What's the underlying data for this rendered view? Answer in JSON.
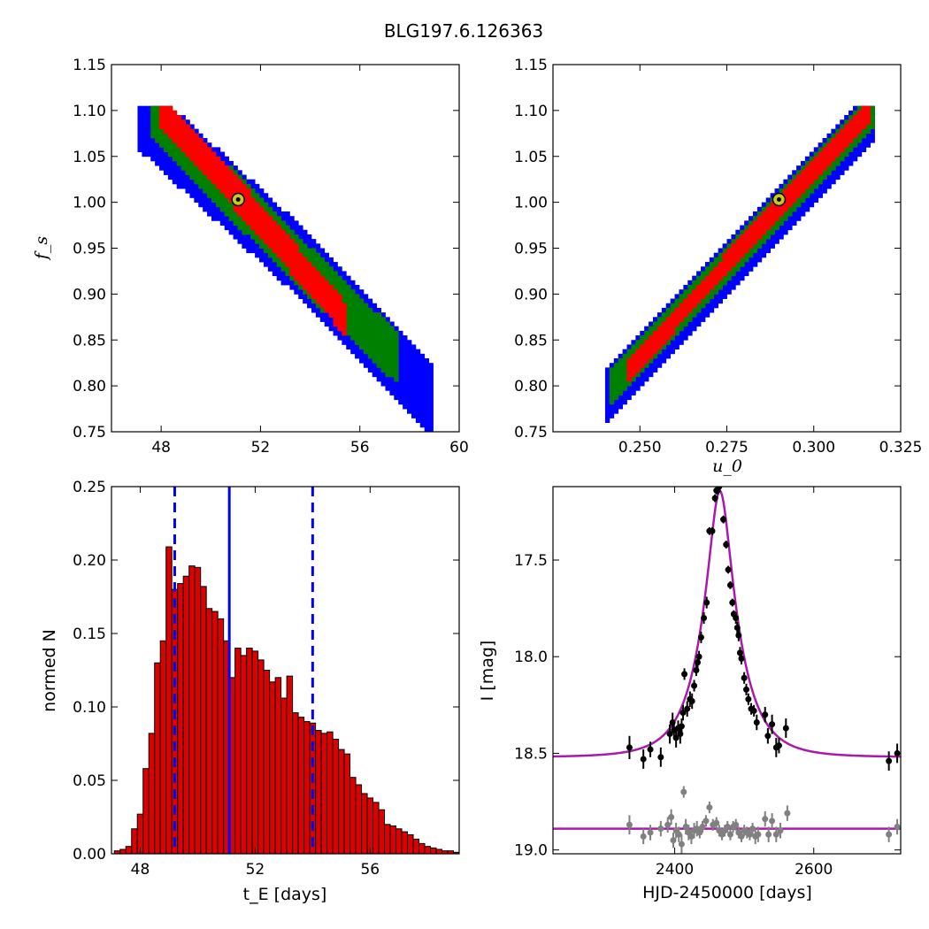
{
  "title": "BLG197.6.126363",
  "colors": {
    "red": "#ff0000",
    "green": "#008000",
    "blue": "#0000ff",
    "magenta": "#aa1aaa",
    "gray": "#808080",
    "best_fit_marker": "#c8c81e",
    "bar_fill": "#dd0000"
  },
  "chart_data": [
    {
      "id": "fs_vs_tE",
      "type": "heatmap",
      "xlabel": "",
      "ylabel": "f_s",
      "xlim": [
        46,
        60
      ],
      "ylim": [
        0.75,
        1.15
      ],
      "xticks": [
        48,
        52,
        56,
        60
      ],
      "xtick_labels": [
        "48",
        "52",
        "56",
        "60"
      ],
      "yticks": [
        0.75,
        0.8,
        0.85,
        0.9,
        0.95,
        1.0,
        1.05,
        1.1,
        1.15
      ],
      "ytick_labels": [
        "0.75",
        "0.80",
        "0.85",
        "0.90",
        "0.95",
        "1.00",
        "1.05",
        "1.10",
        "1.15"
      ],
      "confidence_bands": [
        {
          "color": "blue",
          "centerline": [
            [
              47.0,
              1.1
            ],
            [
              53.0,
              0.95
            ],
            [
              59.0,
              0.78
            ]
          ],
          "half_width": 0.04
        },
        {
          "color": "green",
          "centerline": [
            [
              47.5,
              1.1
            ],
            [
              53.0,
              0.95
            ],
            [
              57.5,
              0.83
            ]
          ],
          "half_width": 0.028
        },
        {
          "color": "red",
          "centerline": [
            [
              48.0,
              1.1
            ],
            [
              52.0,
              0.98
            ],
            [
              55.5,
              0.87
            ]
          ],
          "half_width": 0.018
        }
      ],
      "best_fit": {
        "x": 51.1,
        "y": 1.003
      }
    },
    {
      "id": "fs_vs_u0",
      "type": "heatmap",
      "xlabel": "u_0",
      "ylabel": "",
      "xlim": [
        0.225,
        0.325
      ],
      "ylim": [
        0.75,
        1.15
      ],
      "xticks": [
        0.25,
        0.275,
        0.3,
        0.325
      ],
      "xtick_labels": [
        "0.250",
        "0.275",
        "0.300",
        "0.325"
      ],
      "yticks": [
        0.75,
        0.8,
        0.85,
        0.9,
        0.95,
        1.0,
        1.05,
        1.1,
        1.15
      ],
      "ytick_labels": [
        "0.75",
        "0.80",
        "0.85",
        "0.90",
        "0.95",
        "1.00",
        "1.05",
        "1.10",
        "1.15"
      ],
      "confidence_bands": [
        {
          "color": "blue",
          "centerline": [
            [
              0.24,
              0.785
            ],
            [
              0.318,
              1.1
            ]
          ],
          "half_width": 0.03
        },
        {
          "color": "green",
          "centerline": [
            [
              0.241,
              0.795
            ],
            [
              0.317,
              1.1
            ]
          ],
          "half_width": 0.02
        },
        {
          "color": "red",
          "centerline": [
            [
              0.246,
              0.815
            ],
            [
              0.316,
              1.1
            ]
          ],
          "half_width": 0.012
        }
      ],
      "best_fit": {
        "x": 0.29,
        "y": 1.003
      }
    },
    {
      "id": "tE_histogram",
      "type": "bar",
      "xlabel": "t_E [days]",
      "ylabel": "normed N",
      "xlim": [
        47.0,
        59.1
      ],
      "ylim": [
        0,
        0.25
      ],
      "xticks": [
        48,
        52,
        56
      ],
      "xtick_labels": [
        "48",
        "52",
        "56"
      ],
      "yticks": [
        0,
        0.05,
        0.1,
        0.15,
        0.2,
        0.25
      ],
      "ytick_labels": [
        "0.00",
        "0.05",
        "0.10",
        "0.15",
        "0.20",
        "0.25"
      ],
      "bin_start": 47.1,
      "bin_width": 0.2,
      "values": [
        0.002,
        0.003,
        0.005,
        0.017,
        0.027,
        0.058,
        0.082,
        0.13,
        0.145,
        0.209,
        0.18,
        0.184,
        0.189,
        0.196,
        0.195,
        0.182,
        0.167,
        0.165,
        0.16,
        0.145,
        0.12,
        0.14,
        0.135,
        0.14,
        0.138,
        0.132,
        0.125,
        0.117,
        0.12,
        0.106,
        0.121,
        0.096,
        0.093,
        0.09,
        0.089,
        0.084,
        0.082,
        0.083,
        0.078,
        0.071,
        0.068,
        0.052,
        0.047,
        0.041,
        0.038,
        0.035,
        0.03,
        0.02,
        0.019,
        0.017,
        0.015,
        0.013,
        0.01,
        0.007,
        0.005,
        0.004,
        0.003,
        0.002,
        0.002,
        0.001
      ],
      "median": 51.1,
      "interval": [
        49.2,
        54.0
      ]
    },
    {
      "id": "light_curve",
      "type": "scatter",
      "xlabel": "HJD-2450000 [days]",
      "ylabel": "I [mag]",
      "xlim": [
        2225,
        2725
      ],
      "ylim": [
        19.02,
        17.12
      ],
      "xticks": [
        2400,
        2600
      ],
      "xtick_labels": [
        "2400",
        "2600"
      ],
      "yticks": [
        17.5,
        18.0,
        18.5,
        19.0
      ],
      "ytick_labels": [
        "17.5",
        "18.0",
        "18.5",
        "19.0"
      ],
      "model": {
        "t0": 2465,
        "tE": 51.1,
        "u0": 0.29,
        "baseline": 18.52,
        "fs": 1.0
      },
      "residual_baseline": 18.89,
      "series": [
        {
          "color": "black",
          "points": [
            [
              2335,
              18.47,
              0.06
            ],
            [
              2355,
              18.53,
              0.05
            ],
            [
              2365,
              18.48,
              0.04
            ],
            [
              2380,
              18.52,
              0.05
            ],
            [
              2393,
              18.4,
              0.05
            ],
            [
              2397,
              18.34,
              0.05
            ],
            [
              2399,
              18.38,
              0.04
            ],
            [
              2402,
              18.42,
              0.05
            ],
            [
              2405,
              18.37,
              0.04
            ],
            [
              2408,
              18.4,
              0.05
            ],
            [
              2410,
              18.36,
              0.04
            ],
            [
              2412,
              18.29,
              0.04
            ],
            [
              2414,
              18.09,
              0.03
            ],
            [
              2418,
              18.27,
              0.04
            ],
            [
              2422,
              18.22,
              0.04
            ],
            [
              2425,
              18.23,
              0.04
            ],
            [
              2428,
              18.15,
              0.03
            ],
            [
              2431,
              18.07,
              0.03
            ],
            [
              2433,
              18.03,
              0.03
            ],
            [
              2435,
              18.0,
              0.03
            ],
            [
              2438,
              17.9,
              0.03
            ],
            [
              2442,
              17.8,
              0.03
            ],
            [
              2446,
              17.72,
              0.03
            ],
            [
              2450,
              17.35,
              0.02
            ],
            [
              2454,
              17.35,
              0.02
            ],
            [
              2458,
              17.18,
              0.02
            ],
            [
              2460,
              17.14,
              0.02
            ],
            [
              2462,
              17.14,
              0.02
            ],
            [
              2464,
              17.12,
              0.02
            ],
            [
              2470,
              17.29,
              0.02
            ],
            [
              2474,
              17.42,
              0.02
            ],
            [
              2477,
              17.55,
              0.02
            ],
            [
              2480,
              17.63,
              0.02
            ],
            [
              2483,
              17.72,
              0.02
            ],
            [
              2485,
              17.78,
              0.02
            ],
            [
              2488,
              17.8,
              0.03
            ],
            [
              2490,
              17.85,
              0.03
            ],
            [
              2492,
              17.89,
              0.03
            ],
            [
              2494,
              17.98,
              0.03
            ],
            [
              2496,
              18.01,
              0.03
            ],
            [
              2500,
              18.11,
              0.03
            ],
            [
              2503,
              18.17,
              0.03
            ],
            [
              2506,
              18.22,
              0.03
            ],
            [
              2510,
              18.27,
              0.03
            ],
            [
              2514,
              18.28,
              0.03
            ],
            [
              2518,
              18.34,
              0.04
            ],
            [
              2530,
              18.3,
              0.04
            ],
            [
              2534,
              18.41,
              0.04
            ],
            [
              2540,
              18.35,
              0.05
            ],
            [
              2546,
              18.47,
              0.05
            ],
            [
              2550,
              18.46,
              0.04
            ],
            [
              2560,
              18.37,
              0.05
            ],
            [
              2708,
              18.54,
              0.05
            ],
            [
              2720,
              18.5,
              0.05
            ]
          ]
        },
        {
          "color": "gray",
          "points": [
            [
              2335,
              18.87,
              0.05
            ],
            [
              2355,
              18.93,
              0.04
            ],
            [
              2365,
              18.91,
              0.04
            ],
            [
              2380,
              18.89,
              0.04
            ],
            [
              2390,
              18.87,
              0.04
            ],
            [
              2395,
              18.83,
              0.04
            ],
            [
              2398,
              18.95,
              0.04
            ],
            [
              2402,
              18.9,
              0.04
            ],
            [
              2406,
              18.92,
              0.04
            ],
            [
              2410,
              18.97,
              0.05
            ],
            [
              2413,
              18.7,
              0.03
            ],
            [
              2416,
              18.88,
              0.04
            ],
            [
              2420,
              18.91,
              0.04
            ],
            [
              2424,
              18.93,
              0.04
            ],
            [
              2428,
              18.9,
              0.04
            ],
            [
              2432,
              18.89,
              0.04
            ],
            [
              2436,
              18.91,
              0.03
            ],
            [
              2440,
              18.88,
              0.03
            ],
            [
              2445,
              18.85,
              0.03
            ],
            [
              2450,
              18.78,
              0.03
            ],
            [
              2455,
              18.87,
              0.03
            ],
            [
              2460,
              18.86,
              0.03
            ],
            [
              2464,
              18.9,
              0.03
            ],
            [
              2468,
              18.92,
              0.03
            ],
            [
              2472,
              18.9,
              0.03
            ],
            [
              2476,
              18.88,
              0.03
            ],
            [
              2480,
              18.92,
              0.03
            ],
            [
              2484,
              18.88,
              0.03
            ],
            [
              2488,
              18.87,
              0.03
            ],
            [
              2492,
              18.91,
              0.03
            ],
            [
              2496,
              18.93,
              0.03
            ],
            [
              2500,
              18.9,
              0.03
            ],
            [
              2504,
              18.91,
              0.03
            ],
            [
              2508,
              18.92,
              0.03
            ],
            [
              2512,
              18.89,
              0.03
            ],
            [
              2516,
              18.93,
              0.04
            ],
            [
              2520,
              18.92,
              0.04
            ],
            [
              2530,
              18.84,
              0.04
            ],
            [
              2535,
              18.92,
              0.04
            ],
            [
              2540,
              18.85,
              0.04
            ],
            [
              2546,
              18.92,
              0.04
            ],
            [
              2552,
              18.9,
              0.04
            ],
            [
              2562,
              18.81,
              0.04
            ],
            [
              2708,
              18.92,
              0.04
            ],
            [
              2720,
              18.88,
              0.04
            ]
          ]
        }
      ]
    }
  ]
}
